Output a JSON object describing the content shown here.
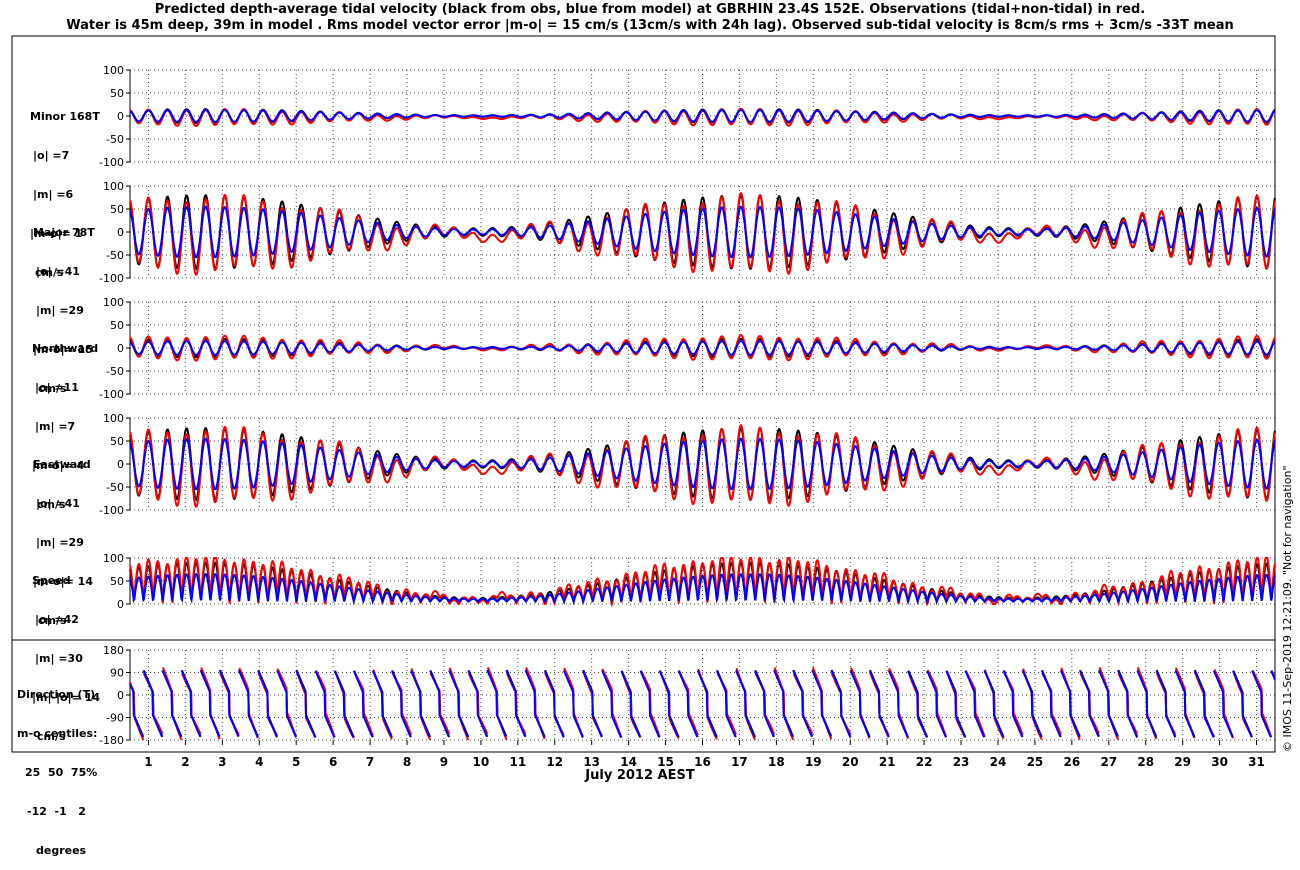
{
  "title": {
    "line1": "Predicted depth-average tidal velocity (black from obs, blue from model) at GBRHIN 23.4S 152E. Observations (tidal+non-tidal) in red.",
    "line2": "Water is 45m deep, 39m in model . Rms model vector error |m-o| = 15 cm/s (13cm/s with 24h lag). Observed sub-tidal velocity is 8cm/s rms + 3cm/s -33T mean"
  },
  "xlabel": "July 2012 AEST",
  "credit": "© IMOS 11-Sep-2019 12:21:09.  \"Not for navigation\"",
  "colors": {
    "obs_tidal": "#000000",
    "model": "#0000ff",
    "observations": "#ff0000"
  },
  "panel_labels": [
    [
      "Minor 168T",
      "|o| =7",
      "|m| =6",
      "|m-o|= 1",
      "cm/s"
    ],
    [
      "Major 78T",
      "|o| =41",
      "|m| =29",
      "|m-o|= 15",
      "cm/s"
    ],
    [
      "Northward",
      "|o| =11",
      "|m| =7",
      "|m-o|= 4",
      "cm/s"
    ],
    [
      "Eastward",
      "|o| =41",
      "|m| =29",
      "|m-o|= 14",
      "cm/s"
    ],
    [
      "Speed",
      "|o| =42",
      "|m| =30",
      "|m|-|o|= 14",
      "cm/s"
    ],
    [
      "Direction (T)",
      "m-o centiles:",
      "25  50  75%",
      "-12  -1   2",
      "degrees"
    ]
  ],
  "chart_data": [
    {
      "type": "line",
      "name": "Minor 168T",
      "xlim": [
        0.5,
        31.5
      ],
      "ylim": [
        -100,
        100
      ],
      "yticks": [
        -100,
        -50,
        0,
        50,
        100
      ],
      "grid": true,
      "series": [
        {
          "name": "obs tidal",
          "amplitude": 15,
          "mean": 0
        },
        {
          "name": "model",
          "amplitude": 13,
          "mean": 0
        },
        {
          "name": "observations",
          "amplitude": 17,
          "mean": -3
        }
      ]
    },
    {
      "type": "line",
      "name": "Major 78T",
      "xlim": [
        0.5,
        31.5
      ],
      "ylim": [
        -100,
        100
      ],
      "yticks": [
        -100,
        -50,
        0,
        50,
        100
      ],
      "grid": true,
      "series": [
        {
          "name": "obs tidal",
          "amplitude": 80,
          "mean": 0
        },
        {
          "name": "model",
          "amplitude": 55,
          "mean": 0
        },
        {
          "name": "observations",
          "amplitude": 80,
          "mean": -5
        }
      ]
    },
    {
      "type": "line",
      "name": "Northward",
      "xlim": [
        0.5,
        31.5
      ],
      "ylim": [
        -100,
        100
      ],
      "yticks": [
        -100,
        -50,
        0,
        50,
        100
      ],
      "grid": true,
      "series": [
        {
          "name": "obs tidal",
          "amplitude": 20,
          "mean": 0
        },
        {
          "name": "model",
          "amplitude": 15,
          "mean": 0
        },
        {
          "name": "observations",
          "amplitude": 25,
          "mean": 0
        }
      ]
    },
    {
      "type": "line",
      "name": "Eastward",
      "xlim": [
        0.5,
        31.5
      ],
      "ylim": [
        -100,
        100
      ],
      "yticks": [
        -100,
        -50,
        0,
        50,
        100
      ],
      "grid": true,
      "series": [
        {
          "name": "obs tidal",
          "amplitude": 78,
          "mean": 0
        },
        {
          "name": "model",
          "amplitude": 55,
          "mean": 0
        },
        {
          "name": "observations",
          "amplitude": 80,
          "mean": -5
        }
      ]
    },
    {
      "type": "line",
      "name": "Speed",
      "xlim": [
        0.5,
        31.5
      ],
      "ylim": [
        0,
        100
      ],
      "yticks": [
        0,
        50,
        100
      ],
      "grid": true,
      "series": [
        {
          "name": "obs tidal",
          "peak": 85
        },
        {
          "name": "model",
          "peak": 60
        },
        {
          "name": "observations",
          "peak": 95
        }
      ]
    },
    {
      "type": "line",
      "name": "Direction (T)",
      "xlim": [
        0.5,
        31.5
      ],
      "ylim": [
        -180,
        180
      ],
      "yticks": [
        -180,
        -90,
        0,
        90,
        180
      ],
      "grid": true,
      "series": [
        {
          "name": "obs tidal"
        },
        {
          "name": "model"
        },
        {
          "name": "observations"
        }
      ]
    }
  ],
  "xticks": [
    "1",
    "2",
    "3",
    "4",
    "5",
    "6",
    "7",
    "8",
    "9",
    "10",
    "11",
    "12",
    "13",
    "14",
    "15",
    "16",
    "17",
    "18",
    "19",
    "20",
    "21",
    "22",
    "23",
    "24",
    "25",
    "26",
    "27",
    "28",
    "29",
    "30",
    "31"
  ]
}
